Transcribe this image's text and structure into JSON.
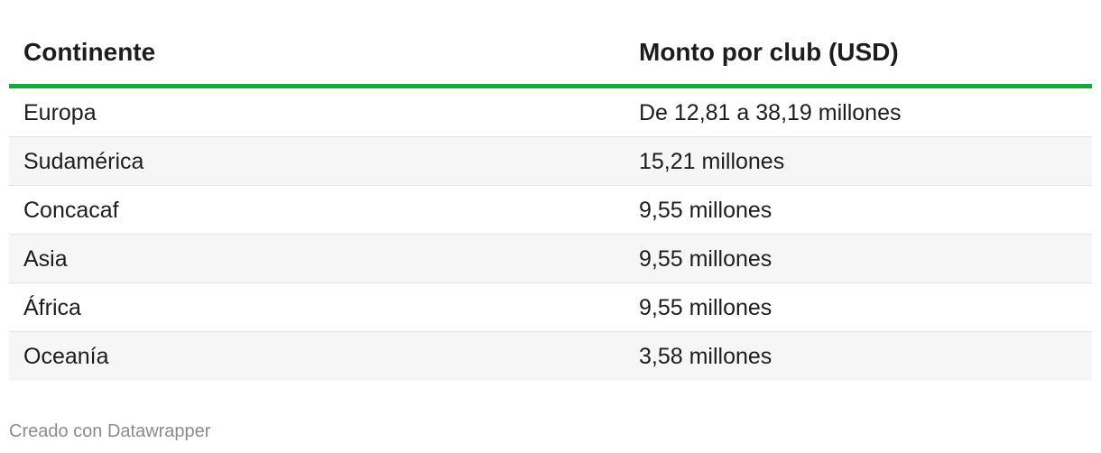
{
  "chart_data": {
    "type": "table",
    "columns": [
      "Continente",
      "Monto por club (USD)"
    ],
    "rows": [
      [
        "Europa",
        "De 12,81 a 38,19 millones"
      ],
      [
        "Sudamérica",
        "15,21 millones"
      ],
      [
        "Concacaf",
        "9,55 millones"
      ],
      [
        "Asia",
        "9,55 millones"
      ],
      [
        "África",
        "9,55 millones"
      ],
      [
        "Oceanía",
        "3,58 millones"
      ]
    ]
  },
  "footer": {
    "credit": "Creado con Datawrapper"
  },
  "colors": {
    "header_rule": "#1ea43a",
    "row_alt": "#f6f6f6",
    "text": "#1d1d1d",
    "footer_text": "#8c8c8c"
  }
}
